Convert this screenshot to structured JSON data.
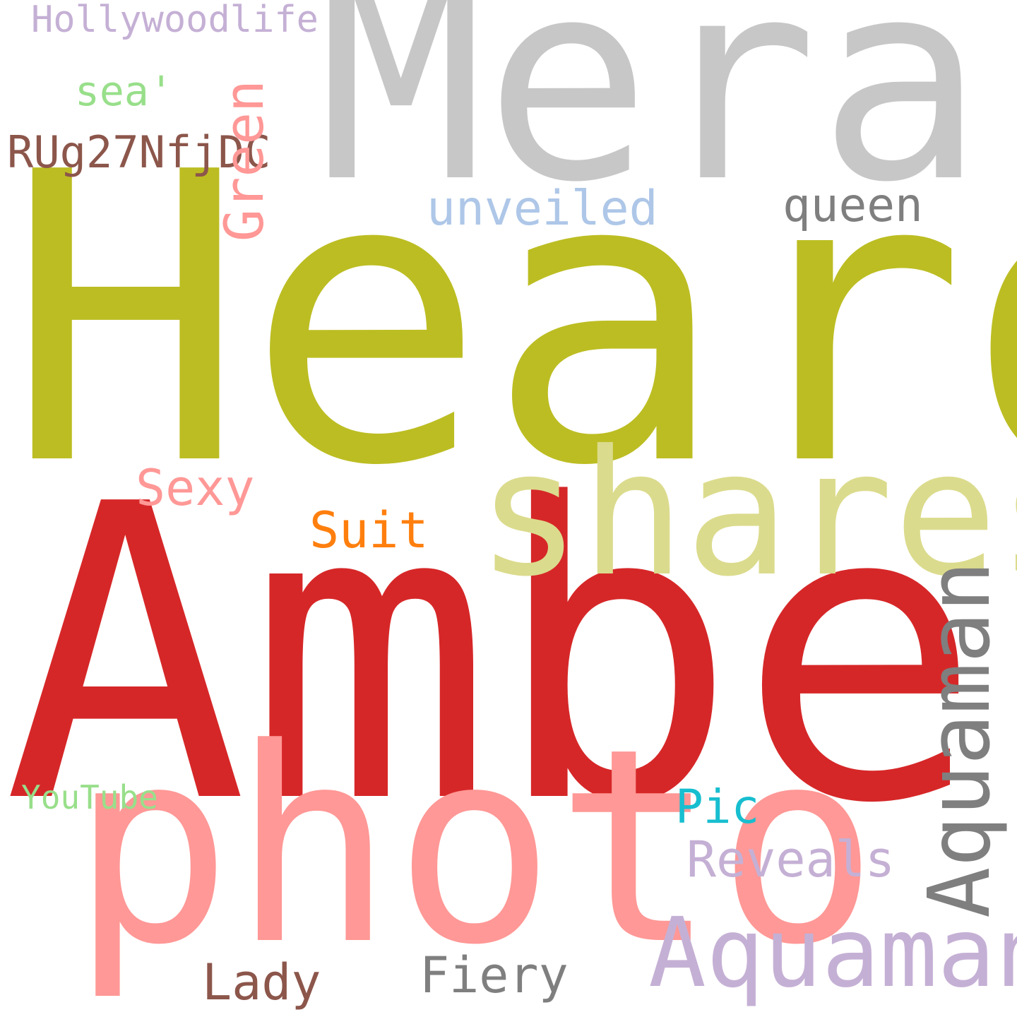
{
  "words": {
    "mera": {
      "text": "Mera",
      "color": "#c7c7c7"
    },
    "heard": {
      "text": "Heard",
      "color": "#bcbd22"
    },
    "amber": {
      "text": "Amber",
      "color": "#d62728"
    },
    "photo": {
      "text": "photo",
      "color": "#ff9896"
    },
    "shares": {
      "text": "shares",
      "color": "#dbdb8d"
    },
    "aquaman_quote": {
      "text": "Aquaman'",
      "color": "#c5b0d5"
    },
    "aquaman": {
      "text": "Aquaman",
      "color": "#7f7f7f"
    },
    "hollywoodlife": {
      "text": "Hollywoodlife",
      "color": "#c5b0d5"
    },
    "sea": {
      "text": "sea'",
      "color": "#98df8a"
    },
    "rug27nfjdc": {
      "text": "RUg27NfjDC",
      "color": "#8c564b"
    },
    "green": {
      "text": "Green",
      "color": "#ff9896"
    },
    "unveiled": {
      "text": "unveiled",
      "color": "#aec7e8"
    },
    "queen": {
      "text": "queen",
      "color": "#7f7f7f"
    },
    "sexy": {
      "text": "Sexy",
      "color": "#ff9896"
    },
    "suit": {
      "text": "Suit",
      "color": "#ff7f0e"
    },
    "youtube": {
      "text": "YouTube",
      "color": "#98df8a"
    },
    "pic": {
      "text": "Pic",
      "color": "#17becf"
    },
    "reveals": {
      "text": "Reveals",
      "color": "#c5b0d5"
    },
    "lady": {
      "text": "Lady",
      "color": "#8c564b"
    },
    "fiery": {
      "text": "Fiery",
      "color": "#7f7f7f"
    }
  }
}
